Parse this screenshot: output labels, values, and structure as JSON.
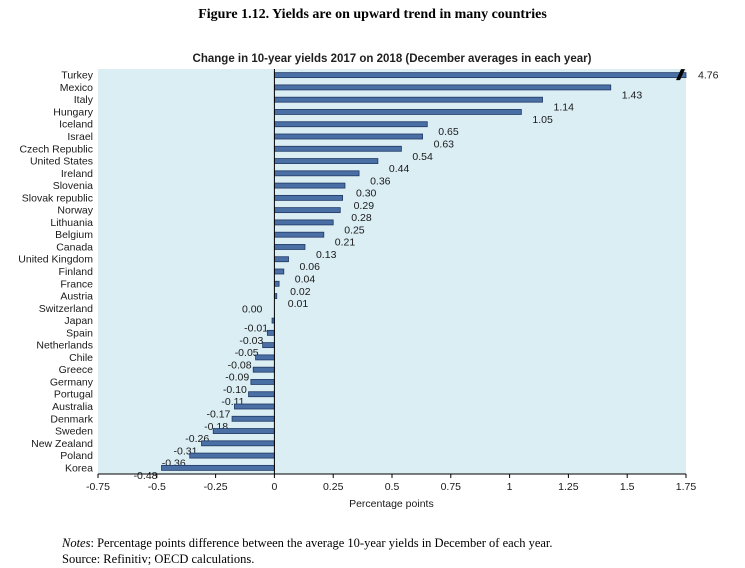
{
  "figure": {
    "title": "Figure 1.12. Yields are on upward trend in many countries",
    "notes_label": "Notes",
    "notes_text": ": Percentage points difference between the average 10-year yields in December of each year.",
    "source_text": "Source: Refinitiv; OECD calculations."
  },
  "colors": {
    "plot_background": "#dbeef4",
    "bar_fill": "#4a6fa5",
    "bar_stroke": "#1f3864",
    "axis_line": "#000000"
  },
  "chart_data": {
    "type": "bar",
    "orientation": "horizontal",
    "title": "Change in 10-year yields 2017 on 2018 (December averages in each year)",
    "xlabel": "Percentage points",
    "ylabel": "",
    "xlim": [
      -0.75,
      1.75
    ],
    "ticks": [
      -0.75,
      -0.5,
      -0.25,
      0,
      0.25,
      0.5,
      0.75,
      1,
      1.25,
      1.5,
      1.75
    ],
    "tick_labels": [
      "-0.75",
      "-0.5",
      "-0.25",
      "0",
      "0.25",
      "0.5",
      "0.75",
      "1",
      "1.25",
      "1.5",
      "1.75"
    ],
    "axis_break_note": "Turkey bar truncated at axis maximum",
    "categories": [
      "Turkey",
      "Mexico",
      "Italy",
      "Hungary",
      "Iceland",
      "Israel",
      "Czech Republic",
      "United States",
      "Ireland",
      "Slovenia",
      "Slovak republic",
      "Norway",
      "Lithuania",
      "Belgium",
      "Canada",
      "United Kingdom",
      "Finland",
      "France",
      "Austria",
      "Switzerland",
      "Japan",
      "Spain",
      "Netherlands",
      "Chile",
      "Greece",
      "Germany",
      "Portugal",
      "Australia",
      "Denmark",
      "Sweden",
      "New Zealand",
      "Poland",
      "Korea"
    ],
    "values": [
      4.76,
      1.43,
      1.14,
      1.05,
      0.65,
      0.63,
      0.54,
      0.44,
      0.36,
      0.3,
      0.29,
      0.28,
      0.25,
      0.21,
      0.13,
      0.06,
      0.04,
      0.02,
      0.01,
      0.0,
      -0.01,
      -0.03,
      -0.05,
      -0.08,
      -0.09,
      -0.1,
      -0.11,
      -0.17,
      -0.18,
      -0.26,
      -0.31,
      -0.36,
      -0.48
    ],
    "value_labels": [
      "4.76",
      "1.43",
      "1.14",
      "1.05",
      "0.65",
      "0.63",
      "0.54",
      "0.44",
      "0.36",
      "0.30",
      "0.29",
      "0.28",
      "0.25",
      "0.21",
      "0.13",
      "0.06",
      "0.04",
      "0.02",
      "0.01",
      "0.00",
      "-0.01",
      "-0.03",
      "-0.05",
      "-0.08",
      "-0.09",
      "-0.10",
      "-0.11",
      "-0.17",
      "-0.18",
      "-0.26",
      "-0.31",
      "-0.36",
      "-0.48"
    ],
    "grid": false,
    "legend": "none"
  }
}
